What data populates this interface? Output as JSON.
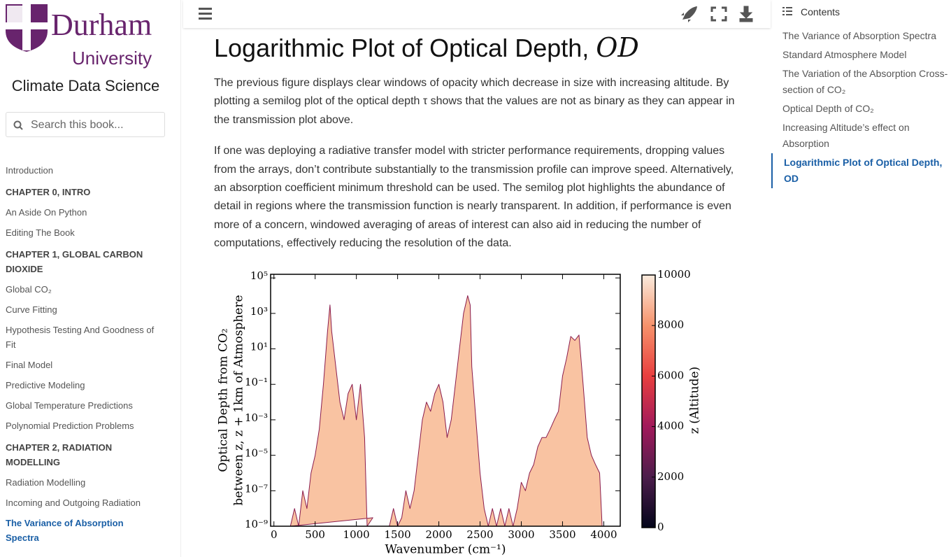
{
  "sidebar": {
    "logo": {
      "name": "Durham",
      "subname": "University"
    },
    "title": "Climate Data Science",
    "search_placeholder": "Search this book...",
    "sections": [
      {
        "items": [
          "Introduction"
        ]
      },
      {
        "caption": "CHAPTER 0, INTRO",
        "items": [
          "An Aside On Python",
          "Editing The Book"
        ]
      },
      {
        "caption": "CHAPTER 1, GLOBAL CARBON DIOXIDE",
        "items": [
          "Global CO₂",
          "Curve Fitting",
          "Hypothesis Testing And Goodness of Fit",
          "Final Model",
          "Predictive Modeling",
          "Global Temperature Predictions",
          "Polynomial Prediction Problems"
        ]
      },
      {
        "caption": "CHAPTER 2, RADIATION MODELLING",
        "items": [
          "Radiation Modelling",
          "Incoming and Outgoing Radiation",
          "The Variance of Absorption Spectra"
        ]
      }
    ]
  },
  "toc": {
    "title": "Contents",
    "items": [
      "The Variance of Absorption Spectra",
      "Standard Atmosphere Model",
      "The Variation of the Absorption Cross-section of CO₂",
      "Optical Depth of CO₂",
      "Increasing Altitude’s effect on Absorption",
      "Logarithmic Plot of Optical Depth, OD"
    ]
  },
  "article": {
    "title": "Logarithmic Plot of Optical Depth, ",
    "title_math": "OD",
    "paragraphs": [
      "The previous figure displays clear windows of opacity which decrease in size with increasing altitude. By plotting a semilog plot of the optical depth τ shows that the values are not as binary as they can appear in the transmission plot above.",
      "If one was deploying a radiative transfer model with stricter performance requirements, dropping values from the arrays, don’t contribute substantially to the transmission profile can improve speed. Alternatively, an absorption coefficient minimum threshold can be used. The semilog plot highlights the abundance of detail in regions where the transmission function is nearly transparent. In addition, if performance is even more of a concern, windowed averaging of areas of interest can also aid in reducing the number of computations, effectively reducing the resolution of the data."
    ]
  },
  "chart_data": {
    "type": "area",
    "xlabel": "Wavenumber (cm⁻¹)",
    "ylabel": [
      "Optical Depth from CO₂",
      "between z, z + 1km of Atmosphere"
    ],
    "yscale": "log",
    "xlim": [
      -40,
      4200
    ],
    "ylim": [
      1e-09,
      160000
    ],
    "xticks": [
      0,
      500,
      1000,
      1500,
      2000,
      2500,
      3000,
      3500,
      4000
    ],
    "yticks": [
      {
        "value": 1e-09,
        "label": "10⁻⁹"
      },
      {
        "value": 1e-07,
        "label": "10⁻⁷"
      },
      {
        "value": 1e-05,
        "label": "10⁻⁵"
      },
      {
        "value": 0.001,
        "label": "10⁻³"
      },
      {
        "value": 0.1,
        "label": "10⁻¹"
      },
      {
        "value": 10,
        "label": "10¹"
      },
      {
        "value": 1000,
        "label": "10³"
      },
      {
        "value": 100000,
        "label": "10⁵"
      }
    ],
    "x": [
      150,
      200,
      250,
      300,
      350,
      400,
      450,
      500,
      550,
      600,
      650,
      680,
      700,
      750,
      800,
      850,
      900,
      950,
      1000,
      1050,
      1100,
      1130,
      1200,
      1250,
      1300,
      1350,
      1400,
      1450,
      1500,
      1550,
      1600,
      1650,
      1700,
      1750,
      1800,
      1850,
      1900,
      1950,
      2000,
      2050,
      2100,
      2150,
      2200,
      2250,
      2300,
      2350,
      2380,
      2400,
      2450,
      2500,
      2550,
      2600,
      2650,
      2700,
      2750,
      2800,
      2850,
      2900,
      2950,
      3000,
      3050,
      3100,
      3150,
      3200,
      3250,
      3300,
      3350,
      3400,
      3450,
      3500,
      3550,
      3600,
      3650,
      3700,
      3750,
      3800,
      3850,
      3900,
      3950,
      3980
    ],
    "series": [
      {
        "color": "#f9c3a2",
        "values": [
          null,
          1e-09,
          1e-08,
          1e-09,
          1e-07,
          1e-08,
          1e-06,
          1e-05,
          0.0003,
          0.1,
          100,
          3000,
          100,
          1,
          0.01,
          0.001,
          0.03,
          0.1,
          0.001,
          0.1,
          0.0001,
          1e-09,
          3e-09,
          null,
          null,
          null,
          1e-09,
          1e-08,
          1e-09,
          3e-09,
          1e-07,
          1e-08,
          1e-07,
          1e-05,
          0.001,
          0.01,
          0.003,
          0.03,
          0.1,
          0.01,
          0.0001,
          0.001,
          0.1,
          10,
          1000,
          10000,
          3000,
          1,
          0.001,
          1e-06,
          1e-08,
          1e-09,
          1e-08,
          1e-09,
          1e-08,
          1e-09,
          1e-08,
          1e-09,
          1e-08,
          3e-07,
          1e-07,
          1e-06,
          3e-06,
          3e-05,
          0.0001,
          0.0001,
          0.0003,
          0.001,
          0.003,
          0.3,
          3,
          50,
          30,
          60,
          0.1,
          0.0001,
          1e-05,
          3e-06,
          1e-06,
          1e-09
        ]
      }
    ],
    "colorbar": {
      "label": "z (Altitude)",
      "lim": [
        0,
        10000
      ],
      "ticks": [
        0,
        2000,
        4000,
        6000,
        8000,
        10000
      ]
    }
  }
}
